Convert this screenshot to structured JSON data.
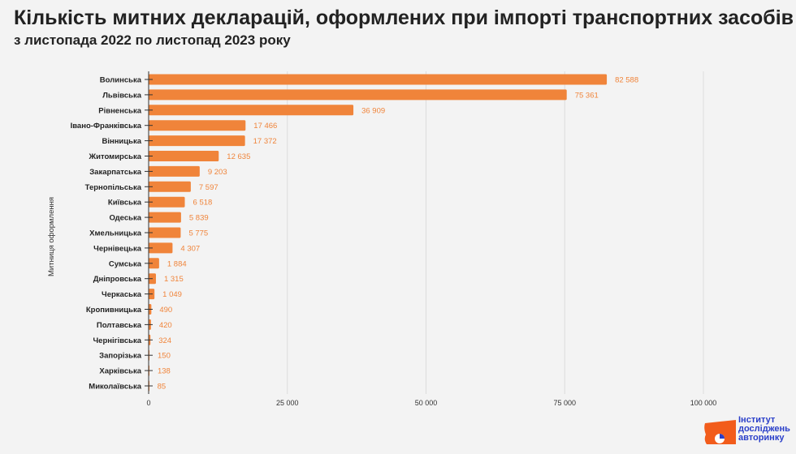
{
  "chart_data": {
    "type": "bar",
    "orientation": "horizontal",
    "title": "Кількість митних декларацій, оформлених при імпорті транспортних засобів",
    "subtitle": "з листопада 2022 по листопад 2023 року",
    "ylabel": "Митниця оформлення",
    "xlabel": "",
    "xlim": [
      0,
      100000
    ],
    "xticks": [
      0,
      25000,
      50000,
      75000,
      100000
    ],
    "xtick_labels": [
      "0",
      "25 000",
      "50 000",
      "75 000",
      "100 000"
    ],
    "grid": true,
    "bar_color": "#f0843a",
    "label_color": "#f0843a",
    "categories": [
      "Волинська",
      "Львівська",
      "Рівненська",
      "Івано-Франківська",
      "Вінницька",
      "Житомирська",
      "Закарпатська",
      "Тернопільська",
      "Київська",
      "Одеська",
      "Хмельницька",
      "Чернівецька",
      "Сумська",
      "Дніпровська",
      "Черкаська",
      "Кропивницька",
      "Полтавська",
      "Чернігівська",
      "Запорізька",
      "Харківська",
      "Миколаївська"
    ],
    "values": [
      82588,
      75361,
      36909,
      17466,
      17372,
      12635,
      9203,
      7597,
      6518,
      5839,
      5775,
      4307,
      1884,
      1315,
      1049,
      490,
      420,
      324,
      150,
      138,
      85
    ],
    "value_labels": [
      "82 588",
      "75 361",
      "36 909",
      "17 466",
      "17 372",
      "12 635",
      "9 203",
      "7 597",
      "6 518",
      "5 839",
      "5 775",
      "4 307",
      "1 884",
      "1 315",
      "1 049",
      "490",
      "420",
      "324",
      "150",
      "138",
      "85"
    ]
  },
  "logo": {
    "lines": [
      "Інститут",
      "досліджень",
      "авторинку"
    ],
    "color": "#2a3fc9",
    "accent": "#f25c1b"
  }
}
